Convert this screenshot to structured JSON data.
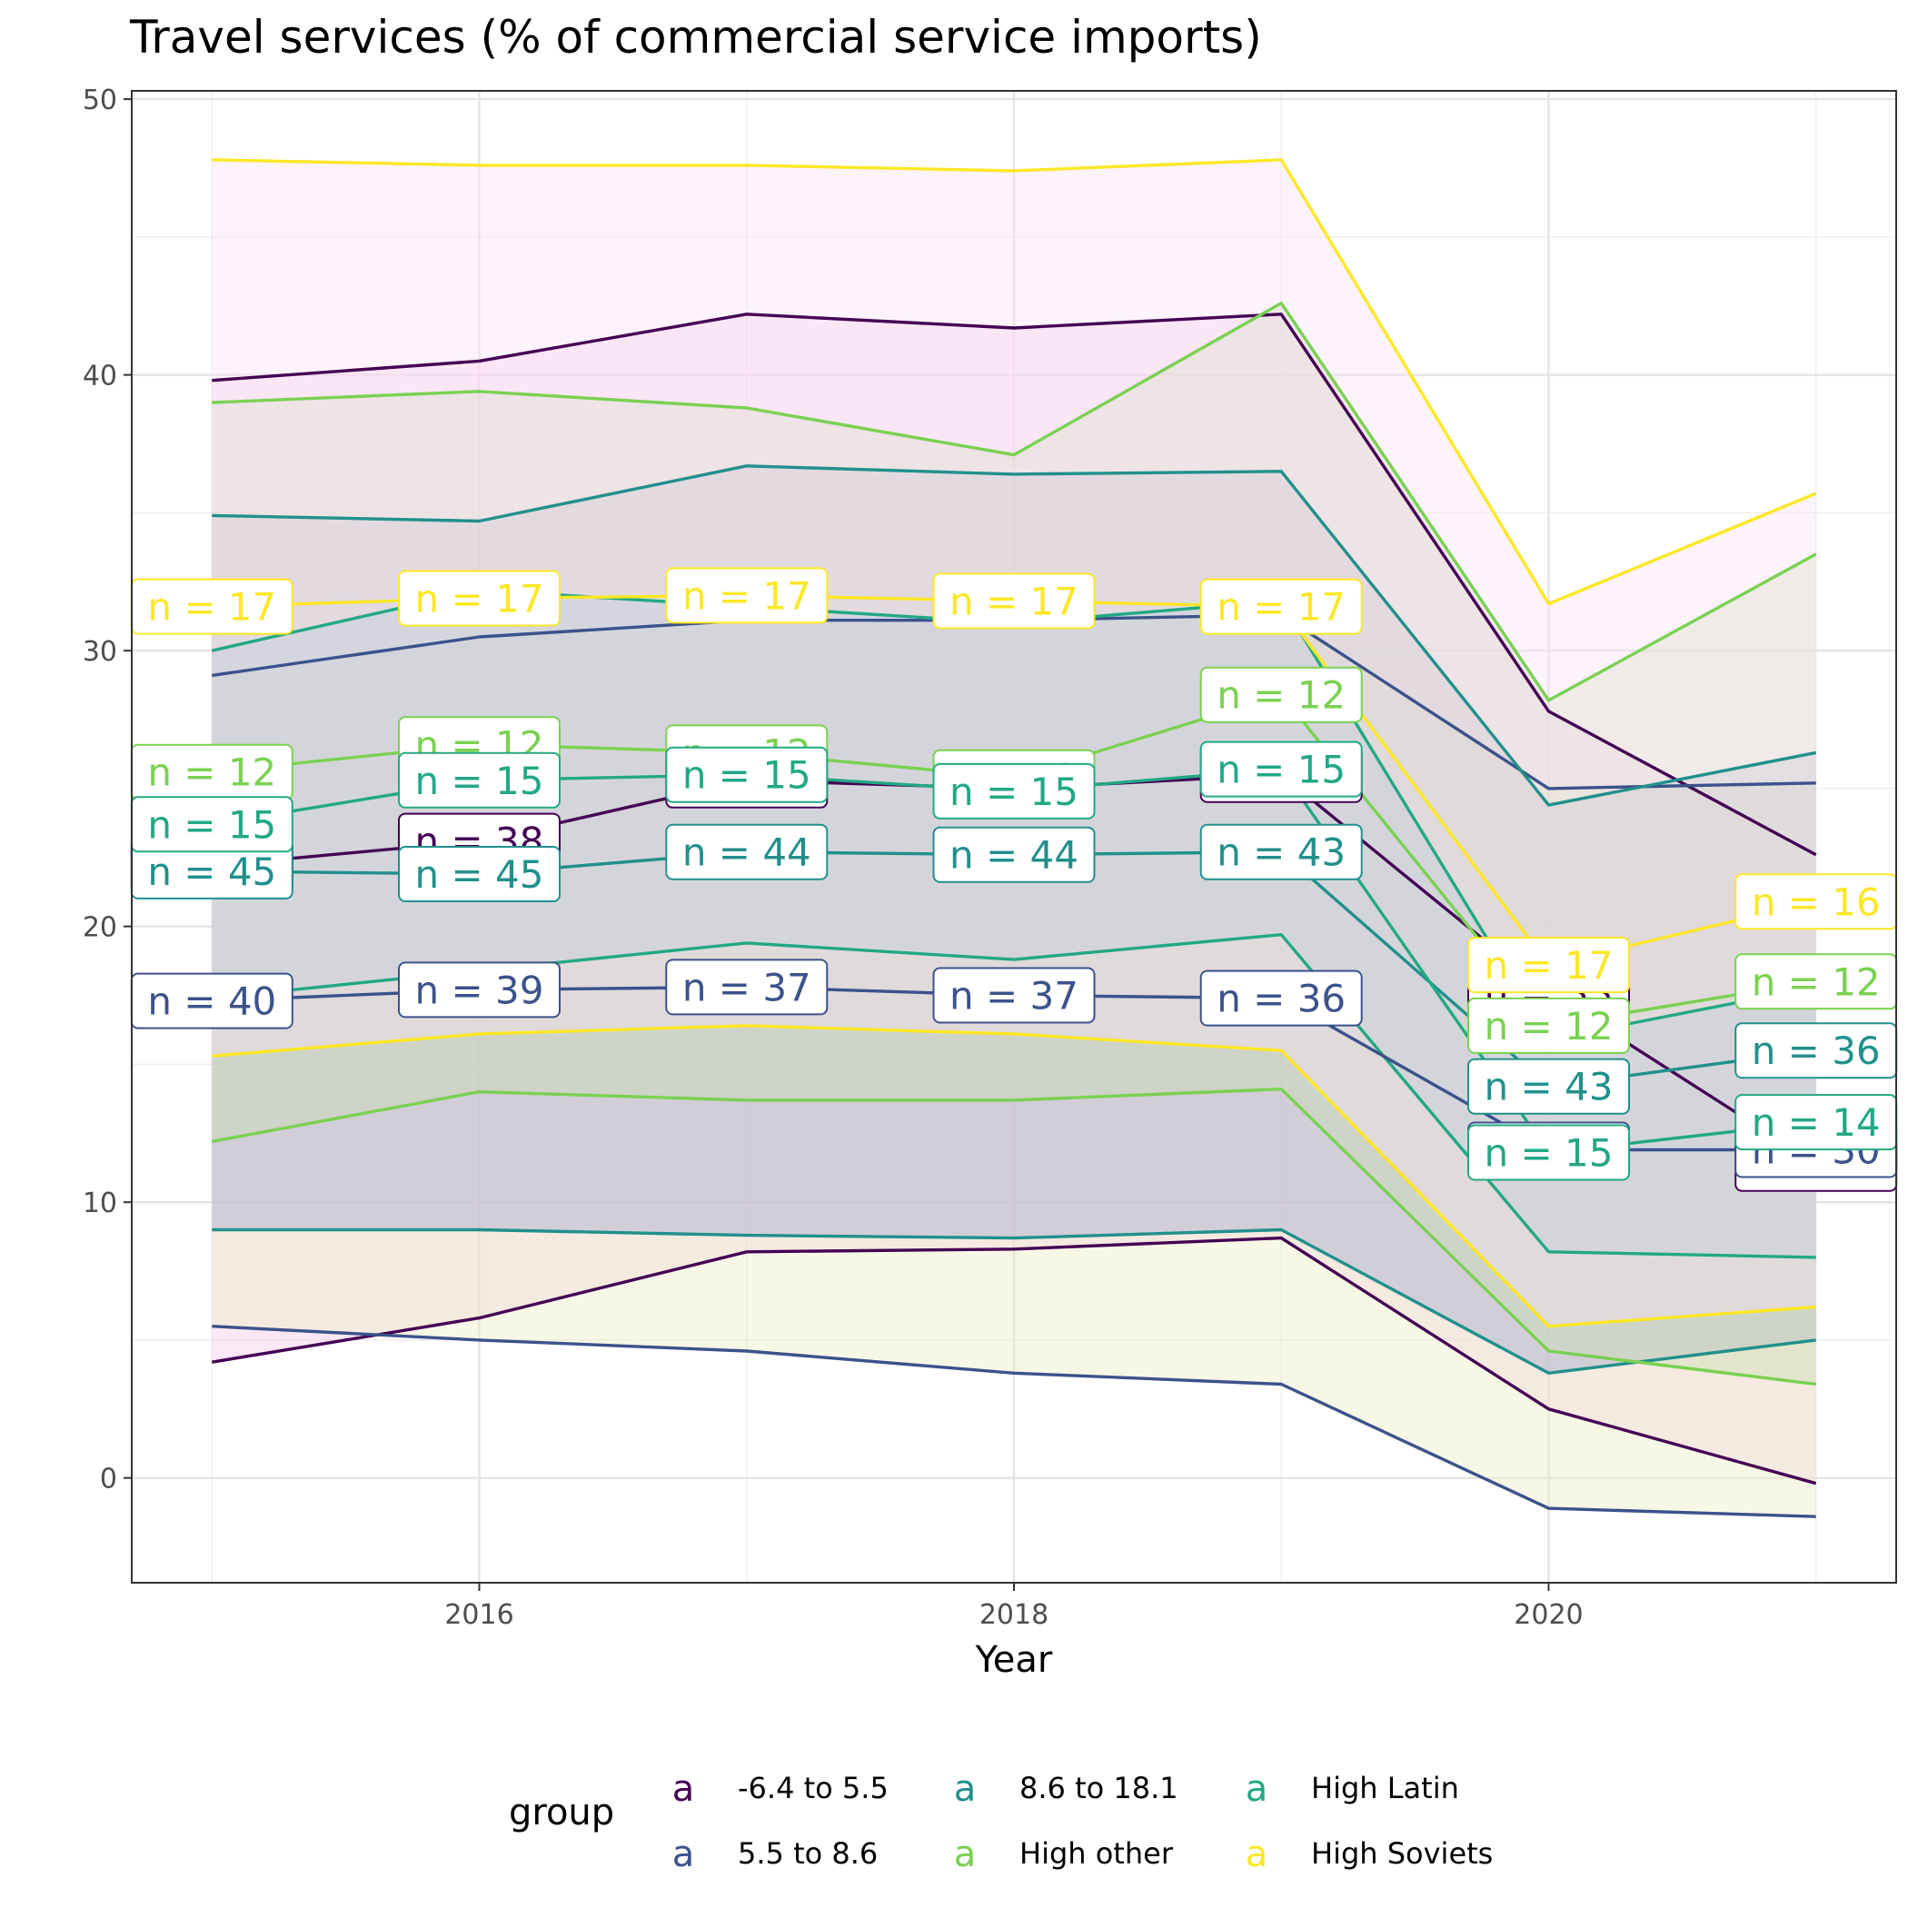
{
  "chart_data": {
    "type": "line",
    "title": "Travel services (% of commercial service imports)",
    "xlabel": "Year",
    "ylabel": "",
    "x": [
      2015,
      2016,
      2017,
      2018,
      2019,
      2020,
      2021
    ],
    "x_ticks": [
      2016,
      2018,
      2020
    ],
    "y_ticks": [
      0,
      10,
      20,
      30,
      40,
      50
    ],
    "xlim": [
      2014.7,
      2021.3
    ],
    "ylim": [
      -3.8,
      50.3
    ],
    "grid": true,
    "legend": {
      "title": "group",
      "position": "bottom",
      "key_glyph": "a",
      "entries": [
        "-6.4 to 5.5",
        "5.5 to 8.6",
        "8.6 to 18.1",
        "High other",
        "High Latin",
        "High Soviets"
      ]
    },
    "series": [
      {
        "name": "-6.4 to 5.5",
        "color": "#440154",
        "mean": [
          22.2,
          23.1,
          25.3,
          25.0,
          25.5,
          17.6,
          11.4
        ],
        "upper": [
          39.8,
          40.5,
          42.2,
          41.7,
          42.2,
          27.8,
          22.6
        ],
        "lower": [
          4.2,
          5.8,
          8.2,
          8.3,
          8.7,
          2.5,
          -0.2
        ],
        "n": [
          38,
          38,
          38,
          38,
          38,
          33,
          32
        ],
        "fill": "#f8c9e8"
      },
      {
        "name": "5.5 to 8.6",
        "color": "#3b528b",
        "mean": [
          17.3,
          17.7,
          17.8,
          17.5,
          17.4,
          11.9,
          11.9
        ],
        "upper": [
          29.1,
          30.5,
          31.1,
          31.1,
          31.3,
          25.0,
          25.2
        ],
        "lower": [
          5.5,
          5.0,
          4.6,
          3.8,
          3.4,
          -1.1,
          -1.4
        ],
        "n": [
          40,
          39,
          37,
          37,
          36,
          30,
          30
        ],
        "fill": "#ecebc4"
      },
      {
        "name": "8.6 to 18.1",
        "color": "#21908c",
        "mean": [
          22.0,
          21.9,
          22.7,
          22.6,
          22.7,
          14.2,
          15.5
        ],
        "upper": [
          34.9,
          34.7,
          36.7,
          36.4,
          36.5,
          24.4,
          26.3
        ],
        "lower": [
          9.0,
          9.0,
          8.8,
          8.7,
          9.0,
          3.8,
          5.0
        ],
        "n": [
          45,
          45,
          44,
          44,
          43,
          43,
          36
        ],
        "fill": "#a3a7cc"
      },
      {
        "name": "High other",
        "color": "#7ad151",
        "mean": [
          25.6,
          26.6,
          26.3,
          25.4,
          28.4,
          16.4,
          18.0
        ],
        "upper": [
          39.0,
          39.4,
          38.8,
          37.1,
          42.6,
          28.2,
          33.5
        ],
        "lower": [
          12.2,
          14.0,
          13.7,
          13.7,
          14.1,
          4.6,
          3.4
        ],
        "n": [
          12,
          12,
          12,
          12,
          12,
          12,
          12
        ],
        "fill": "#c8ddb0"
      },
      {
        "name": "High Latin",
        "color": "#22a884",
        "mean": [
          23.7,
          25.3,
          25.5,
          24.9,
          25.7,
          11.8,
          12.9
        ],
        "upper": [
          30.0,
          32.2,
          31.6,
          31.0,
          31.8,
          15.9,
          17.8
        ],
        "lower": [
          17.4,
          18.4,
          19.4,
          18.8,
          19.7,
          8.2,
          8.0
        ],
        "n": [
          15,
          15,
          15,
          15,
          15,
          15,
          14
        ],
        "fill": "#9ec0c8"
      },
      {
        "name": "High Soviets",
        "color": "#fde725",
        "mean": [
          31.6,
          31.9,
          32.0,
          31.8,
          31.6,
          18.6,
          20.9
        ],
        "upper": [
          47.8,
          47.6,
          47.6,
          47.4,
          47.8,
          31.7,
          35.7
        ],
        "lower": [
          15.3,
          16.1,
          16.4,
          16.1,
          15.5,
          5.5,
          6.2
        ],
        "n": [
          17,
          17,
          17,
          17,
          17,
          17,
          16
        ],
        "fill": "#fbe3f9"
      }
    ]
  }
}
